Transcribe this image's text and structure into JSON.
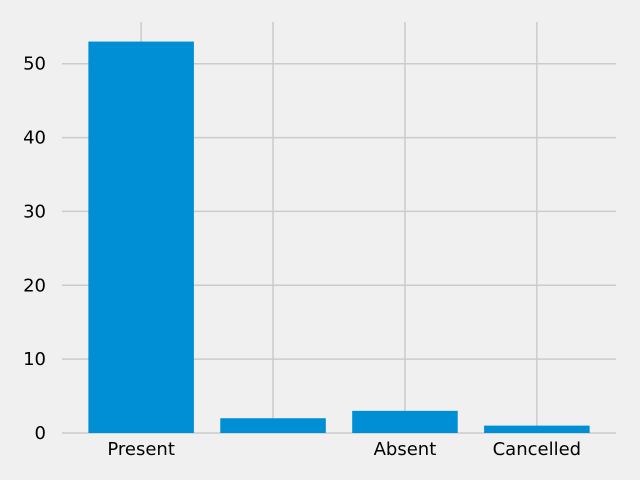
{
  "chart_data": {
    "type": "bar",
    "categories": [
      "Present",
      "",
      "Absent",
      "Cancelled"
    ],
    "values": [
      53,
      2,
      3,
      1
    ],
    "title": "",
    "xlabel": "",
    "ylabel": "",
    "ylim": [
      0,
      55.65
    ],
    "yticks": [
      "0",
      "10",
      "20",
      "30",
      "40",
      "50"
    ],
    "ytick_values": [
      0,
      10,
      20,
      30,
      40,
      50
    ],
    "grid": true,
    "bar_color": "#008fd5",
    "grid_color": "#cbcbcb",
    "background_color": "#f0f0f0"
  }
}
